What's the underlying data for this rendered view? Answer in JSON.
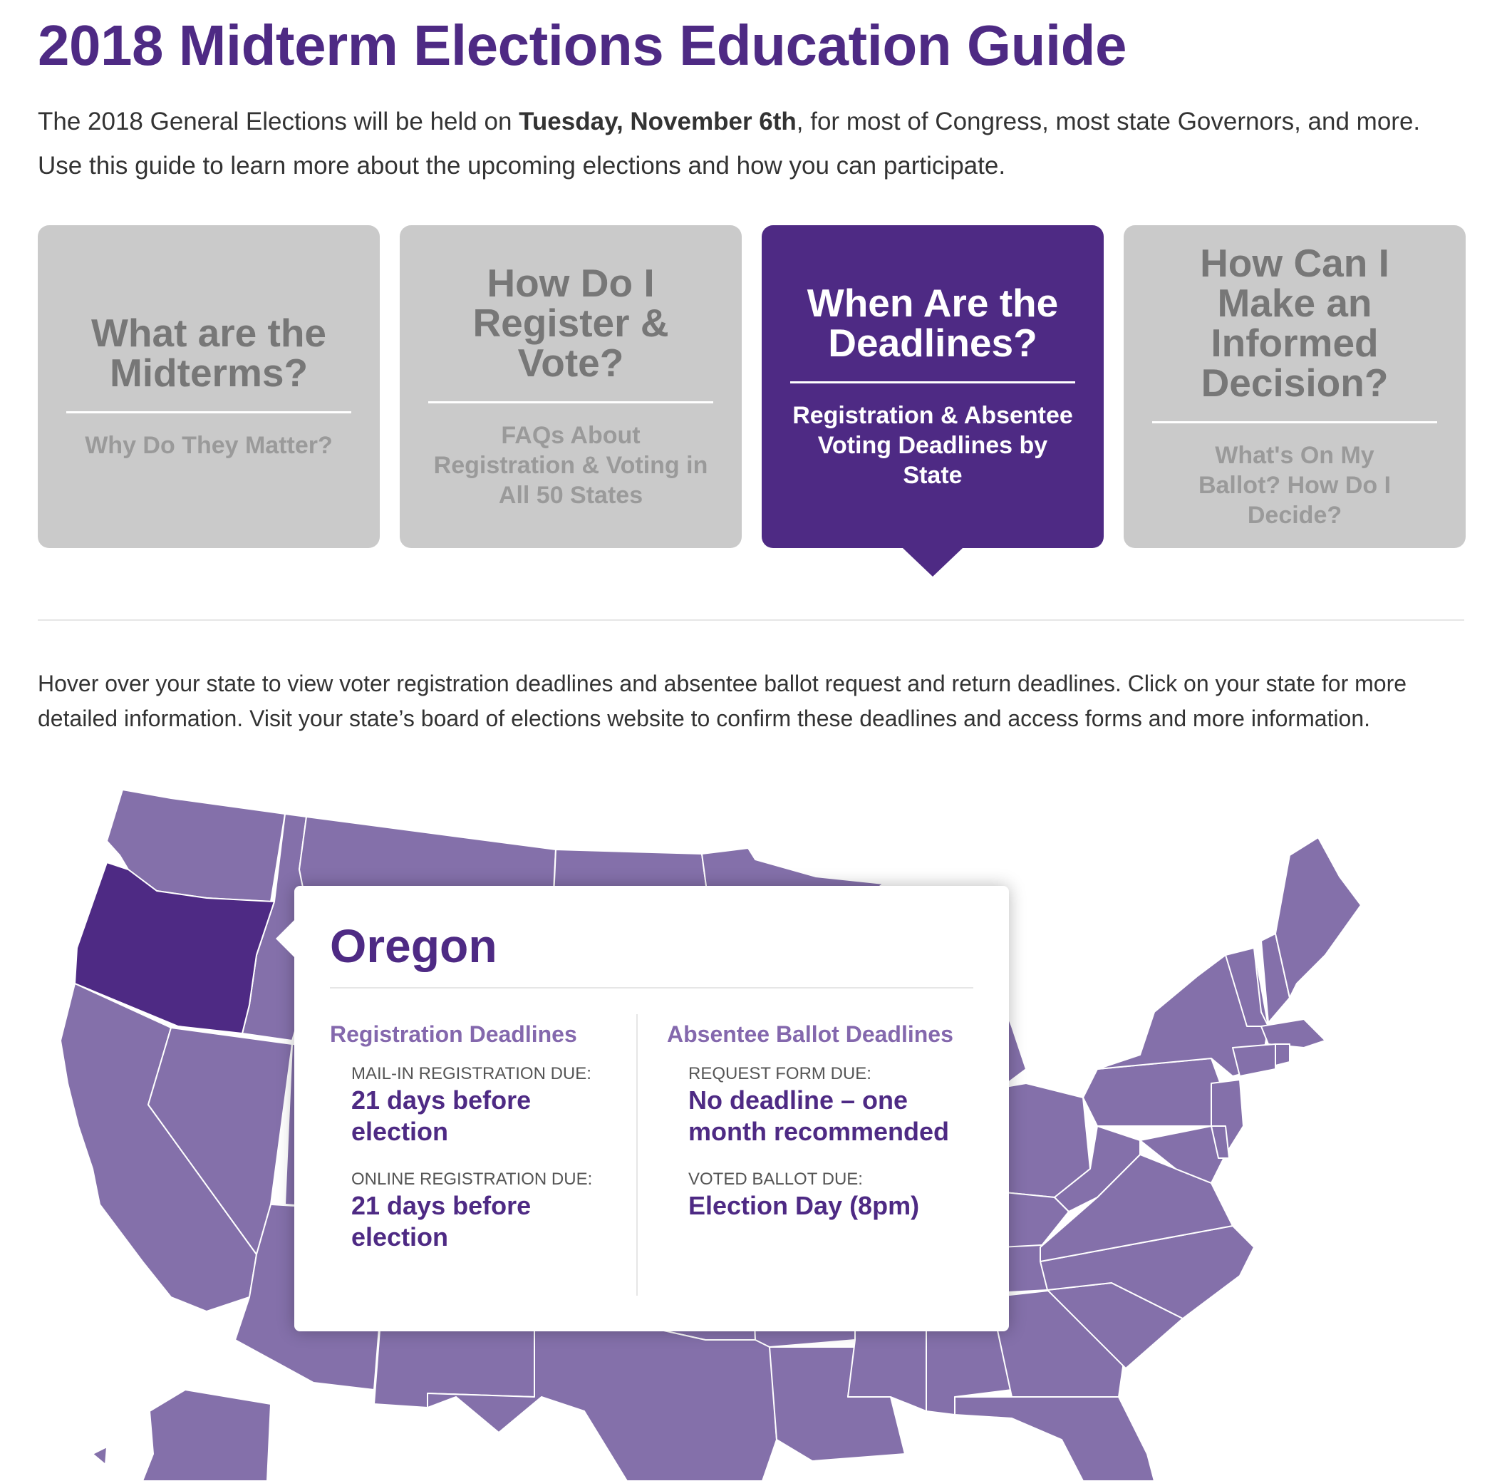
{
  "page": {
    "title": "2018 Midterm Elections Education Guide",
    "intro_before": "The 2018 General Elections will be held on ",
    "intro_bold": "Tuesday, November 6th",
    "intro_after": ", for most of Congress, most state Governors, and more. Use this guide to learn more about the upcoming elections and how you can participate."
  },
  "tabs": [
    {
      "title": "What are the Midterms?",
      "subtitle": "Why Do They Matter?",
      "active": false
    },
    {
      "title": "How Do I Register & Vote?",
      "subtitle": "FAQs About Registration & Voting in All 50 States",
      "active": false
    },
    {
      "title": "When Are the Deadlines?",
      "subtitle": "Registration & Absentee Voting Deadlines by State",
      "active": true
    },
    {
      "title": "How Can I Make an Informed Decision?",
      "subtitle": "What's On My Ballot? How Do I Decide?",
      "active": false
    }
  ],
  "instructions": "Hover over your state to view voter registration deadlines and absentee ballot request and return deadlines. Click on your state for more detailed information. Visit your state’s board of elections website to confirm these deadlines and access forms and more information.",
  "map": {
    "state_color": "#8470aa",
    "highlight_color": "#4e2a84",
    "border_color": "#ffffff",
    "highlighted_state": "Oregon"
  },
  "tooltip": {
    "state": "Oregon",
    "registration": {
      "heading": "Registration Deadlines",
      "mail_label": "MAIL-IN REGISTRATION DUE:",
      "mail_value": "21 days before election",
      "online_label": "ONLINE REGISTRATION DUE:",
      "online_value": "21 days before election"
    },
    "absentee": {
      "heading": "Absentee Ballot Deadlines",
      "request_label": "REQUEST FORM DUE:",
      "request_value": "No deadline – one month recommended",
      "voted_label": "VOTED BALLOT DUE:",
      "voted_value": "Election Day (8pm)"
    }
  }
}
